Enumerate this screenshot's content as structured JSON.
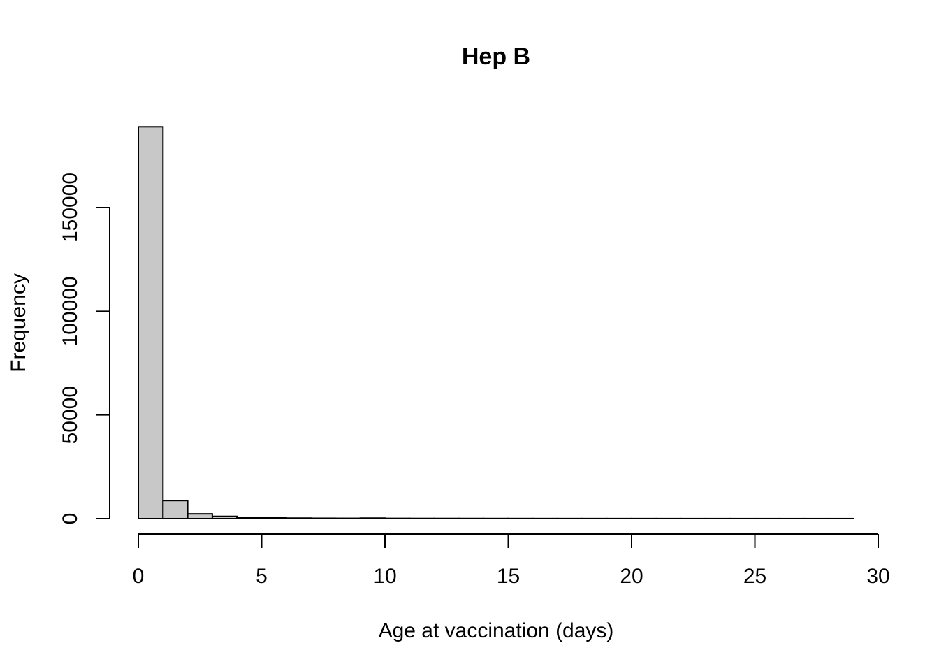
{
  "chart_data": {
    "type": "bar",
    "histogram": true,
    "title": "Hep B",
    "xlabel": "Age at vaccination (days)",
    "ylabel": "Frequency",
    "xlim": [
      0,
      30
    ],
    "ylim": [
      0,
      190000
    ],
    "x_ticks": [
      0,
      5,
      10,
      15,
      20,
      25,
      30
    ],
    "y_ticks": [
      0,
      50000,
      100000,
      150000
    ],
    "bin_width": 1,
    "bins": [
      {
        "start": 0,
        "end": 1,
        "value": 189000
      },
      {
        "start": 1,
        "end": 2,
        "value": 8700
      },
      {
        "start": 2,
        "end": 3,
        "value": 2300
      },
      {
        "start": 3,
        "end": 4,
        "value": 1100
      },
      {
        "start": 4,
        "end": 5,
        "value": 600
      },
      {
        "start": 5,
        "end": 6,
        "value": 400
      },
      {
        "start": 6,
        "end": 7,
        "value": 250
      },
      {
        "start": 7,
        "end": 8,
        "value": 180
      },
      {
        "start": 8,
        "end": 9,
        "value": 150
      },
      {
        "start": 9,
        "end": 10,
        "value": 250
      },
      {
        "start": 10,
        "end": 11,
        "value": 120
      },
      {
        "start": 11,
        "end": 12,
        "value": 100
      },
      {
        "start": 12,
        "end": 13,
        "value": 90
      },
      {
        "start": 13,
        "end": 14,
        "value": 80
      },
      {
        "start": 14,
        "end": 15,
        "value": 70
      },
      {
        "start": 15,
        "end": 16,
        "value": 60
      },
      {
        "start": 16,
        "end": 17,
        "value": 55
      },
      {
        "start": 17,
        "end": 18,
        "value": 50
      },
      {
        "start": 18,
        "end": 19,
        "value": 45
      },
      {
        "start": 19,
        "end": 20,
        "value": 40
      },
      {
        "start": 20,
        "end": 21,
        "value": 40
      },
      {
        "start": 21,
        "end": 22,
        "value": 35
      },
      {
        "start": 22,
        "end": 23,
        "value": 30
      },
      {
        "start": 23,
        "end": 24,
        "value": 30
      },
      {
        "start": 24,
        "end": 25,
        "value": 25
      },
      {
        "start": 25,
        "end": 26,
        "value": 25
      },
      {
        "start": 26,
        "end": 27,
        "value": 20
      },
      {
        "start": 27,
        "end": 28,
        "value": 20
      },
      {
        "start": 28,
        "end": 29,
        "value": 20
      }
    ],
    "colors": {
      "bar_fill": "#c8c8c8",
      "bar_stroke": "#000000"
    },
    "grid": false,
    "legend": "none"
  }
}
